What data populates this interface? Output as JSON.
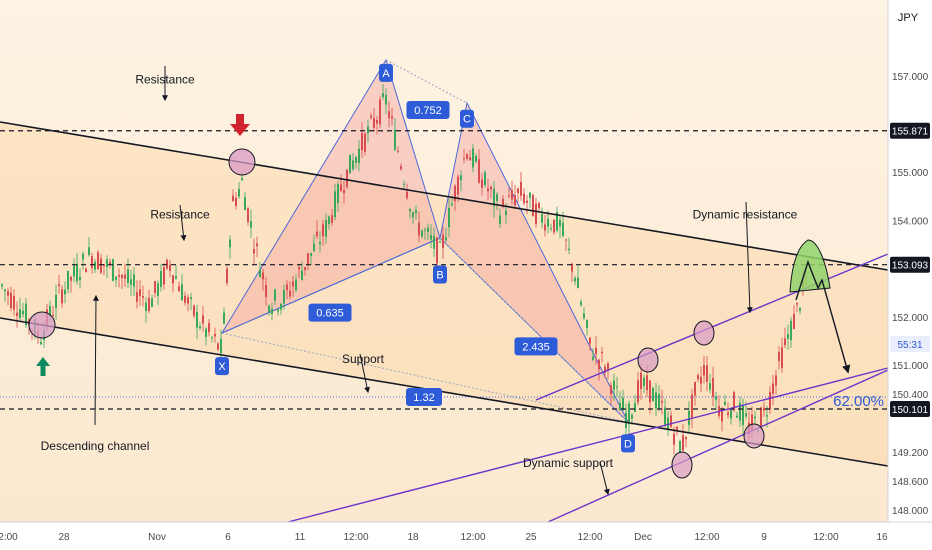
{
  "currency": "JPY",
  "chart_data": {
    "type": "candlestick",
    "y_ticks": [
      {
        "v": 148.0,
        "t": "148.000"
      },
      {
        "v": 148.6,
        "t": "148.600"
      },
      {
        "v": 149.2,
        "t": "149.200"
      },
      {
        "v": 150.4,
        "t": "150.400"
      },
      {
        "v": 151.0,
        "t": "151.000"
      },
      {
        "v": 152.0,
        "t": "152.000"
      },
      {
        "v": 153.0,
        "t": "153.000"
      },
      {
        "v": 154.0,
        "t": "154.000"
      },
      {
        "v": 155.0,
        "t": "155.000"
      },
      {
        "v": 157.0,
        "t": "157.000"
      }
    ],
    "x_ticks": [
      "2:00",
      "28",
      "Nov",
      "6",
      "11",
      "12:00",
      "18",
      "12:00",
      "25",
      "12:00",
      "Dec",
      "12:00",
      "9",
      "12:00",
      "16"
    ],
    "price_badges": [
      {
        "v": 155.871,
        "t": "155.871",
        "style": "dark"
      },
      {
        "v": 153.093,
        "t": "153.093",
        "style": "dark"
      },
      {
        "v": 150.101,
        "t": "150.101",
        "style": "dark"
      },
      {
        "v": 151.45,
        "t": "55:31",
        "style": "countdown"
      }
    ],
    "horizontal_levels": [
      155.871,
      153.093,
      150.101
    ],
    "current_price_line": 150.35,
    "pattern_points": [
      {
        "label": "X",
        "t": 222,
        "price": 151.3
      },
      {
        "label": "A",
        "t": 386,
        "price": 156.8
      },
      {
        "label": "B",
        "t": 440,
        "price": 153.2
      },
      {
        "label": "C",
        "t": 467,
        "price": 155.85
      },
      {
        "label": "D",
        "t": 628,
        "price": 149.7
      }
    ],
    "ratios": [
      {
        "text": "0.752",
        "t": 428,
        "price": 156.3
      },
      {
        "text": "0.635",
        "t": 330,
        "price": 152.1
      },
      {
        "text": "1.32",
        "t": 424,
        "price": 150.35
      },
      {
        "text": "2.435",
        "t": 536,
        "price": 151.4
      }
    ],
    "annotations": [
      {
        "text": "Resistance",
        "t": 165,
        "price": 156.85
      },
      {
        "text": "Resistance",
        "t": 180,
        "price": 154.05
      },
      {
        "text": "Support",
        "t": 363,
        "price": 151.05
      },
      {
        "text": "Descending channel",
        "t": 95,
        "price": 149.25
      },
      {
        "text": "Dynamic resistance",
        "t": 745,
        "price": 154.05
      },
      {
        "text": "Dynamic support",
        "t": 568,
        "price": 148.9
      }
    ],
    "fib_label": "62.00%"
  }
}
